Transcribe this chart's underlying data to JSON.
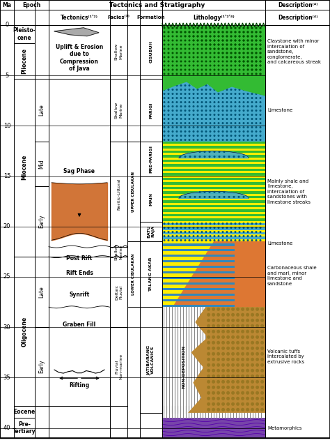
{
  "title": "Tectonics and Stratigraphy",
  "ma_ticks": [
    0,
    5,
    10,
    15,
    20,
    25,
    30,
    35,
    40
  ],
  "ma_max": 41,
  "epoch_data": [
    {
      "name": "Pleisto-\ncene",
      "ms": 0,
      "me": 1.8,
      "subs": null
    },
    {
      "name": "Pliocene",
      "ms": 1.8,
      "me": 5.3,
      "subs": null
    },
    {
      "name": "Miocene",
      "ms": 5.3,
      "me": 23.0,
      "subs": [
        {
          "name": "Late",
          "ms": 5.3,
          "me": 11.6
        },
        {
          "name": "Mid",
          "ms": 11.6,
          "me": 15.97
        },
        {
          "name": "Early",
          "ms": 15.97,
          "me": 23.0
        }
      ]
    },
    {
      "name": "Oligocene",
      "ms": 23.0,
      "me": 37.8,
      "subs": [
        {
          "name": "Late",
          "ms": 23.0,
          "me": 30.0
        },
        {
          "name": "Early",
          "ms": 30.0,
          "me": 37.8
        }
      ]
    },
    {
      "name": "Eocene",
      "ms": 37.8,
      "me": 39.0,
      "subs": null
    },
    {
      "name": "Pre-\nTertiary",
      "ms": 39.0,
      "me": 41.0,
      "subs": null
    }
  ],
  "facies_data": [
    {
      "name": "Shallow\nMarine",
      "ms": 0,
      "me": 5.3
    },
    {
      "name": "Shallow\nMarine",
      "ms": 5.3,
      "me": 11.6
    },
    {
      "name": "Neritic-Littoral",
      "ms": 11.6,
      "me": 22.0
    },
    {
      "name": "Shallow\nMarine",
      "ms": 22.0,
      "me": 23.0
    },
    {
      "name": "Deltaic\nFluvial",
      "ms": 23.0,
      "me": 30.0
    },
    {
      "name": "Fluvial\nNon-marine",
      "ms": 30.0,
      "me": 37.8
    }
  ],
  "formations": [
    {
      "name": "CISUBUH",
      "ms": 0,
      "me": 5.3,
      "group": null
    },
    {
      "name": "PARIGI",
      "ms": 5.3,
      "me": 11.6,
      "group": null
    },
    {
      "name": "PRE-PARIGI",
      "ms": 11.6,
      "me": 15.0,
      "group": "UPPER CIBULAKAN"
    },
    {
      "name": "MAIN",
      "ms": 15.0,
      "me": 19.5,
      "group": "UPPER CIBULAKAN"
    },
    {
      "name": "BATU\nRAJA",
      "ms": 19.5,
      "me": 21.5,
      "group": "UPPER CIBULAKAN"
    },
    {
      "name": "TALANG AKAR",
      "ms": 21.5,
      "me": 28.0,
      "group": "LOWER CIBULAKAN"
    },
    {
      "name": "JATIBARANG\nVOLCANICS",
      "ms": 28.0,
      "me": 38.5,
      "group": null
    }
  ],
  "descriptions": [
    {
      "ms": 0,
      "me": 5.3,
      "text": "Claystone with minor\nintercalation of\nsandstone,\nconglomerate,\nand calcareous streak"
    },
    {
      "ms": 5.3,
      "me": 11.6,
      "text": "Limestone"
    },
    {
      "ms": 11.6,
      "me": 21.5,
      "text": "Mainly shale and\nlimestone,\nintercalation of\nsandstones with\nlimestone streaks"
    },
    {
      "ms": 21.5,
      "me": 21.8,
      "text": "Limestone"
    },
    {
      "ms": 21.8,
      "me": 28.0,
      "text": "Carbonaceous shale\nand marl, minor\nlimestone and\nsandstone"
    },
    {
      "ms": 28.0,
      "me": 37.8,
      "text": "Volcanic tuffs\nintercalated by\nextrusive rocks"
    },
    {
      "ms": 39.0,
      "me": 41.0,
      "text": "Metamorphics"
    }
  ],
  "colors": {
    "green": "#33BB33",
    "blue_lith": "#44AACC",
    "yellow": "#FFEE00",
    "orange": "#DD7733",
    "brown": "#BB8833",
    "purple": "#7744AA",
    "white": "#FFFFFF",
    "gray": "#999999"
  }
}
